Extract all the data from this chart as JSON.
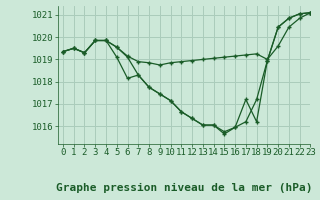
{
  "background_color": "#cce8d8",
  "grid_color": "#aaccbb",
  "line_color": "#1a5c28",
  "marker_color": "#1a5c28",
  "title": "Graphe pression niveau de la mer (hPa)",
  "xlim": [
    -0.5,
    23
  ],
  "ylim": [
    1015.2,
    1021.4
  ],
  "yticks": [
    1016,
    1017,
    1018,
    1019,
    1020,
    1021
  ],
  "xticks": [
    0,
    1,
    2,
    3,
    4,
    5,
    6,
    7,
    8,
    9,
    10,
    11,
    12,
    13,
    14,
    15,
    16,
    17,
    18,
    19,
    20,
    21,
    22,
    23
  ],
  "series": [
    [
      1019.35,
      1019.5,
      1019.3,
      1019.85,
      1019.85,
      1019.55,
      1019.15,
      1018.9,
      1018.85,
      1018.75,
      1018.85,
      1018.9,
      1018.95,
      1019.0,
      1019.05,
      1019.1,
      1019.15,
      1019.2,
      1019.25,
      1019.0,
      1019.6,
      1020.45,
      1020.85,
      1021.1
    ],
    [
      1019.35,
      1019.5,
      1019.3,
      1019.85,
      1019.85,
      1019.1,
      1018.15,
      1018.3,
      1017.75,
      1017.45,
      1017.15,
      1016.65,
      1016.35,
      1016.05,
      1016.05,
      1015.75,
      1015.95,
      1016.2,
      1017.2,
      1018.95,
      1020.45,
      1020.85,
      1021.05,
      1021.1
    ],
    [
      1019.35,
      1019.5,
      1019.3,
      1019.85,
      1019.85,
      1019.55,
      1019.1,
      1018.3,
      1017.75,
      1017.45,
      1017.15,
      1016.65,
      1016.35,
      1016.05,
      1016.05,
      1015.65,
      1015.95,
      1017.2,
      1016.2,
      1018.95,
      1020.45,
      1020.85,
      1021.05,
      1021.1
    ]
  ],
  "title_fontsize": 8,
  "tick_fontsize": 6.5
}
